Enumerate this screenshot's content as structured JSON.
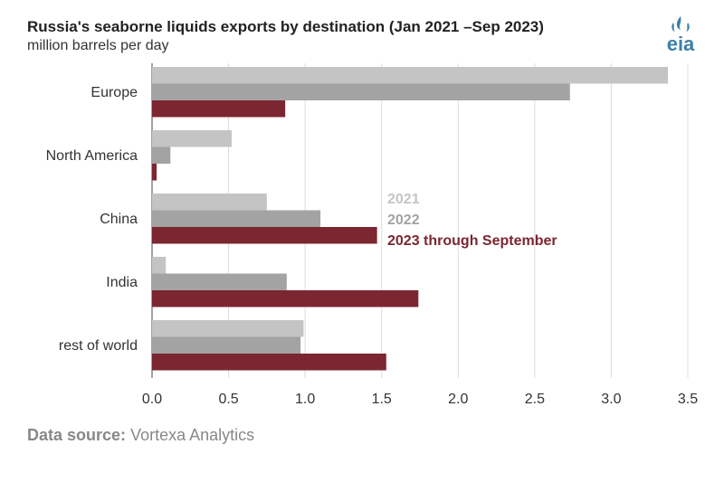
{
  "chart_data": {
    "type": "bar",
    "orientation": "horizontal",
    "title": "Russia's seaborne liquids exports by destination (Jan 2021 –Sep 2023)",
    "subtitle": "million barrels per day",
    "categories": [
      "Europe",
      "North America",
      "China",
      "India",
      "rest of world"
    ],
    "series": [
      {
        "name": "2021",
        "color": "#c4c4c4",
        "values": [
          3.37,
          0.52,
          0.75,
          0.09,
          0.99
        ]
      },
      {
        "name": "2022",
        "color": "#a3a3a3",
        "values": [
          2.73,
          0.12,
          1.1,
          0.88,
          0.97
        ]
      },
      {
        "name": "2023 through  September",
        "color": "#7b2630",
        "values": [
          0.87,
          0.03,
          1.47,
          1.74,
          1.53
        ]
      }
    ],
    "xlim": [
      0,
      3.5
    ],
    "xticks": [
      "0.0",
      "0.5",
      "1.0",
      "1.5",
      "2.0",
      "2.5",
      "3.0",
      "3.5"
    ],
    "grid": "vertical",
    "legend": "center"
  },
  "source": {
    "label": "Data source:",
    "text": "Vortexa Analytics"
  },
  "logo": {
    "text": "eia",
    "icon": "eia-logo-icon",
    "color": "#3d7fa8"
  }
}
